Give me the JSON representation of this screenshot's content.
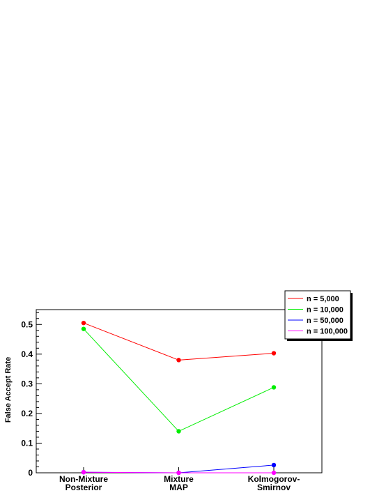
{
  "chart_data": {
    "type": "line",
    "categories": [
      [
        "Non-Mixture",
        "Posterior"
      ],
      [
        "Mixture",
        "MAP"
      ],
      [
        "Kolmogorov-",
        "Smirnov"
      ]
    ],
    "ylabel": "False Accept Rate",
    "xlabel": "",
    "ylim": [
      0,
      0.55
    ],
    "yticks": [
      "0",
      "0.1",
      "0.2",
      "0.3",
      "0.4",
      "0.5"
    ],
    "grid": false,
    "legend_position": "top-right",
    "series": [
      {
        "name": "n = 5,000",
        "color": "#ff0000",
        "values": [
          0.505,
          0.38,
          0.403
        ]
      },
      {
        "name": "n = 10,000",
        "color": "#00ee00",
        "values": [
          0.485,
          0.14,
          0.288
        ]
      },
      {
        "name": "n = 50,000",
        "color": "#0000ff",
        "values": [
          0.002,
          0.0,
          0.026
        ]
      },
      {
        "name": "n = 100,000",
        "color": "#ff00ff",
        "values": [
          0.002,
          0.0,
          0.0
        ]
      }
    ]
  }
}
